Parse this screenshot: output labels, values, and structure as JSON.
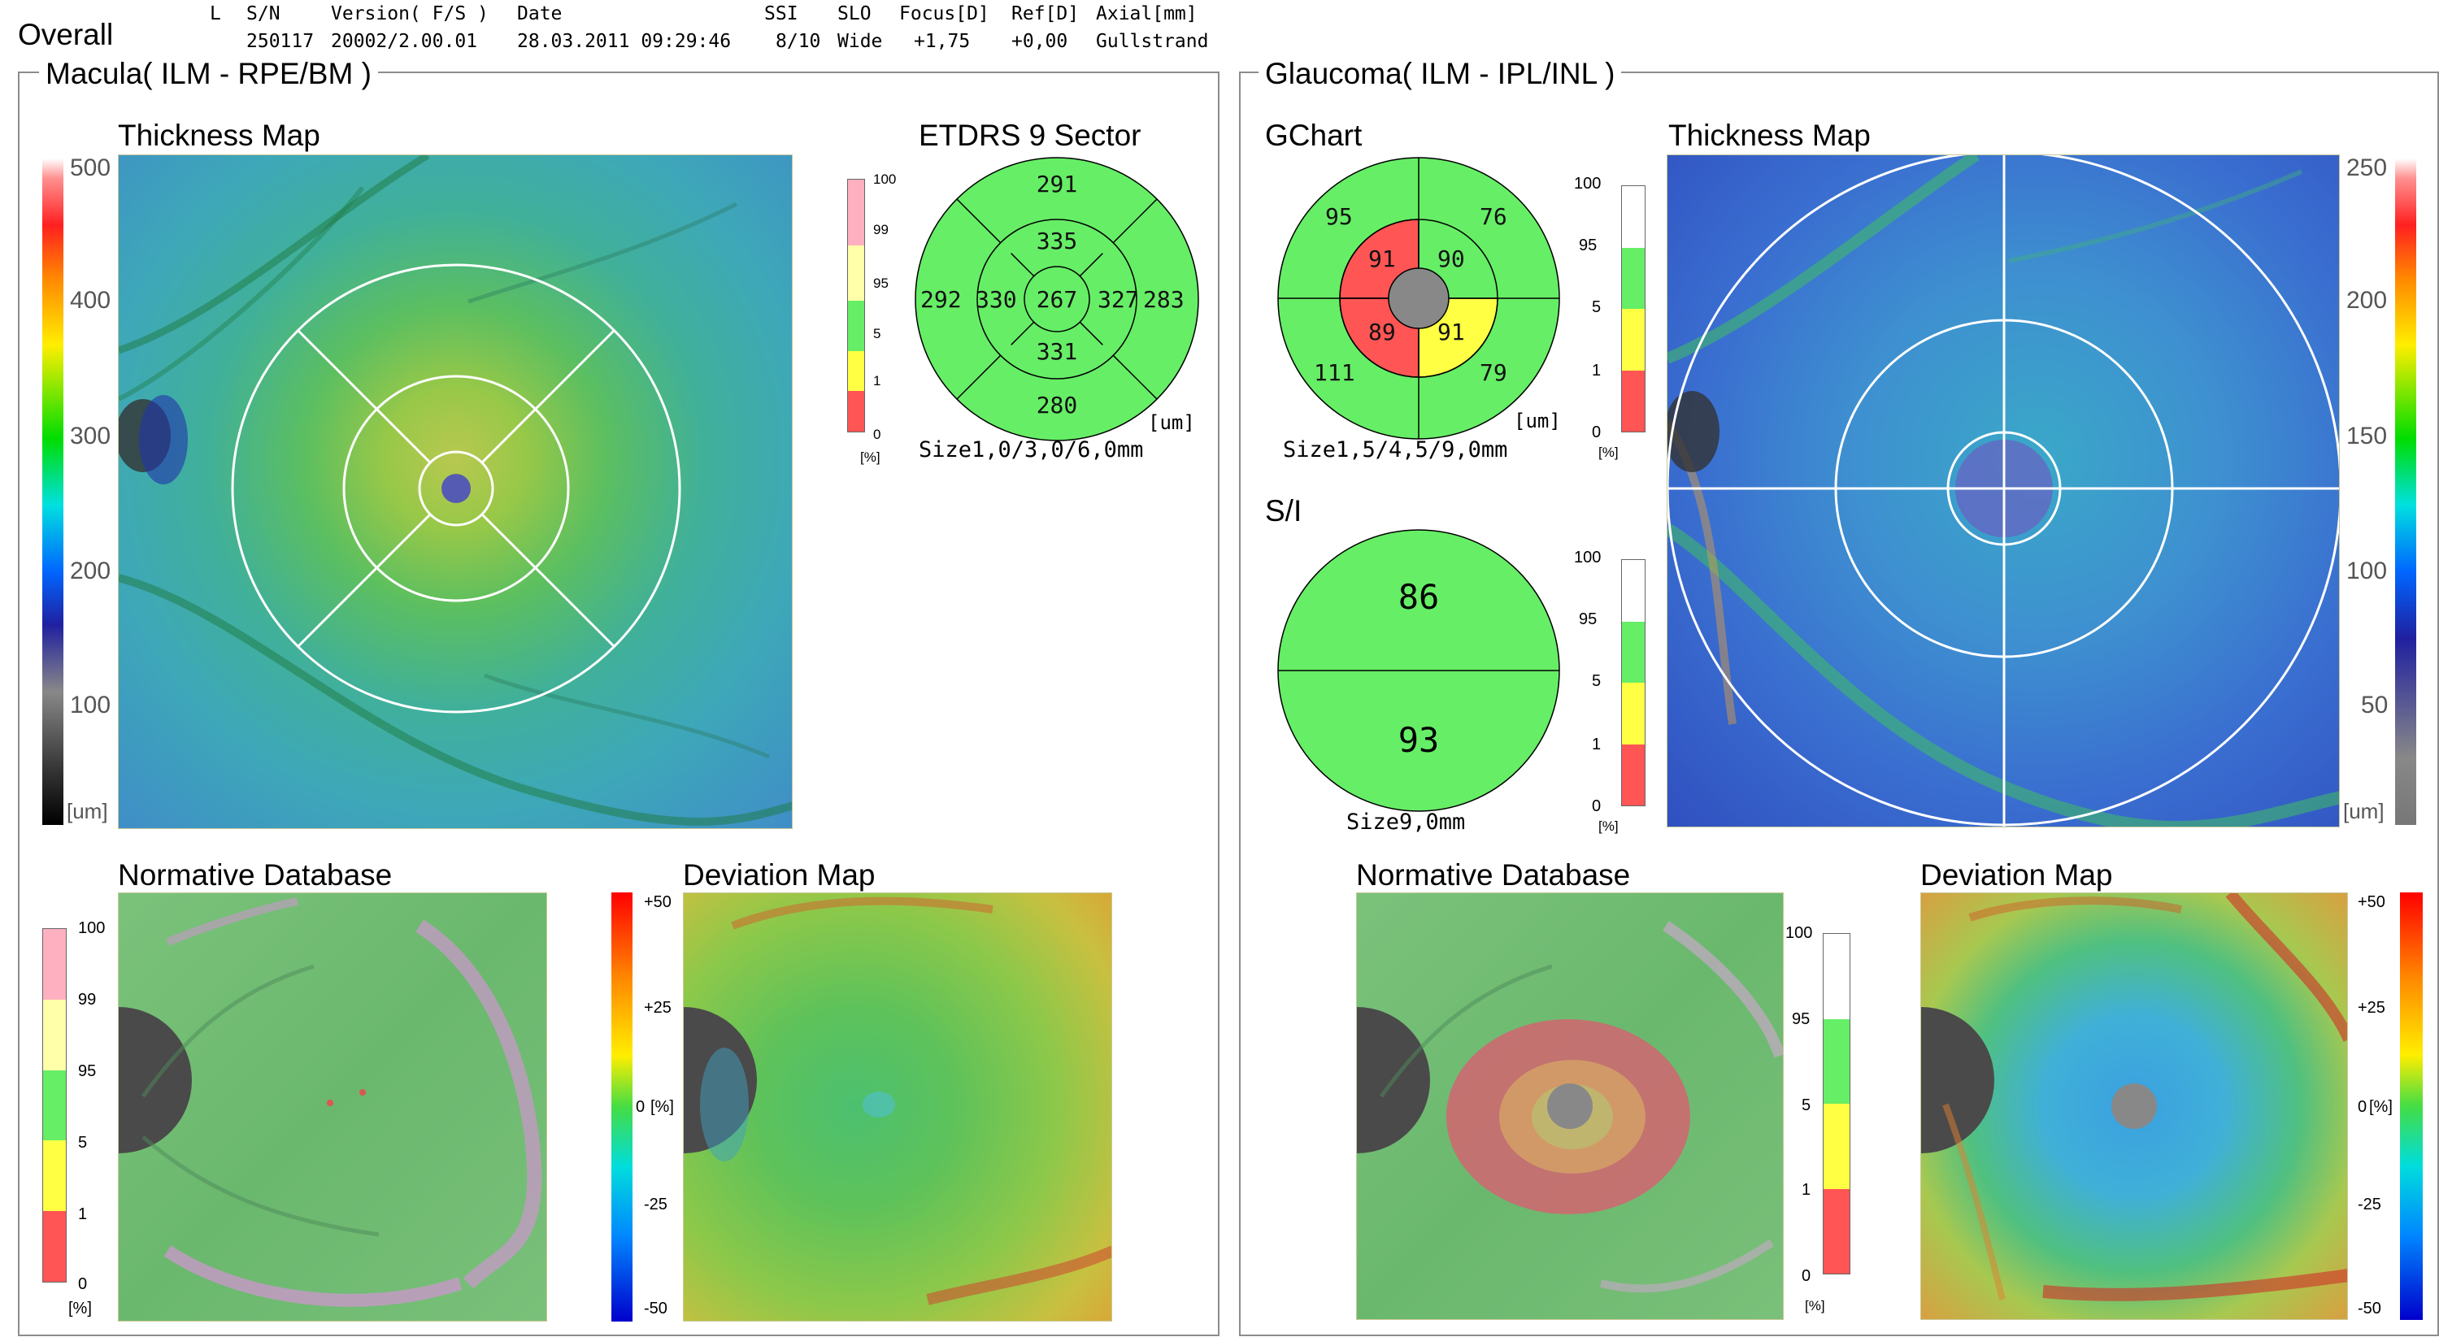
{
  "header": {
    "title": "Overall",
    "eye": "L",
    "columns": [
      "S/N",
      "Version( F/S )",
      "Date",
      "SSI",
      "SLO",
      "Focus[D]",
      "Ref[D]",
      "Axial[mm]"
    ],
    "values": [
      "250117",
      "20002/2.00.01",
      "28.03.2011 09:29:46",
      "8/10",
      "Wide",
      "+1,75",
      "+0,00",
      "Gullstrand"
    ]
  },
  "macula": {
    "panel_title": "Macula( ILM - RPE/BM )",
    "thickness_map_title": "Thickness Map",
    "thickness_scale": [
      "500",
      "400",
      "300",
      "200",
      "100"
    ],
    "thickness_unit": "[um]",
    "etdrs_title": "ETDRS 9 Sector",
    "etdrs": {
      "center": "267",
      "inner_superior": "335",
      "inner_inferior": "331",
      "inner_temporal": "330",
      "inner_nasal": "327",
      "outer_superior": "291",
      "outer_inferior": "280",
      "outer_temporal": "292",
      "outer_nasal": "283",
      "unit": "[um]",
      "size_label": "Size1,0/3,0/6,0mm"
    },
    "percentile_scale": [
      "100",
      "99",
      "95",
      "5",
      "1",
      "0"
    ],
    "percentile_unit": "[%]",
    "normative_title": "Normative Database",
    "normative_scale": [
      "100",
      "99",
      "95",
      "5",
      "1",
      "0"
    ],
    "normative_unit": "[%]",
    "deviation_title": "Deviation Map",
    "deviation_scale": [
      "+50",
      "+25",
      "0",
      "-25",
      "-50"
    ],
    "deviation_unit": "[%]"
  },
  "glaucoma": {
    "panel_title": "Glaucoma( ILM - IPL/INL )",
    "gchart_title": "GChart",
    "gchart": {
      "outer_tl": "95",
      "outer_tr": "76",
      "outer_bl": "111",
      "outer_br": "79",
      "inner_tl": "91",
      "inner_tr": "90",
      "inner_bl": "89",
      "inner_br": "91",
      "unit": "[um]",
      "size_label": "Size1,5/4,5/9,0mm"
    },
    "gchart_scale": [
      "100",
      "95",
      "5",
      "1",
      "0"
    ],
    "gchart_unit": "[%]",
    "si_title": "S/I",
    "si": {
      "superior": "86",
      "inferior": "93",
      "size_label": "Size9,0mm"
    },
    "si_scale": [
      "100",
      "95",
      "5",
      "1",
      "0"
    ],
    "si_unit": "[%]",
    "thickness_map_title": "Thickness Map",
    "thickness_scale": [
      "250",
      "200",
      "150",
      "100",
      "50"
    ],
    "thickness_unit": "[um]",
    "normative_title": "Normative Database",
    "normative_scale": [
      "100",
      "95",
      "5",
      "1",
      "0"
    ],
    "normative_unit": "[%]",
    "deviation_title": "Deviation Map",
    "deviation_scale": [
      "+50",
      "+25",
      "0",
      "-25",
      "-50"
    ],
    "deviation_unit": "[%]"
  },
  "colors": {
    "normal_green": "#66ee66",
    "borderline_yellow": "#ffff44",
    "abnormal_red": "#ff5555",
    "supranormal_pink": "#ffb0c0",
    "light_yellow": "#ffffaa"
  }
}
